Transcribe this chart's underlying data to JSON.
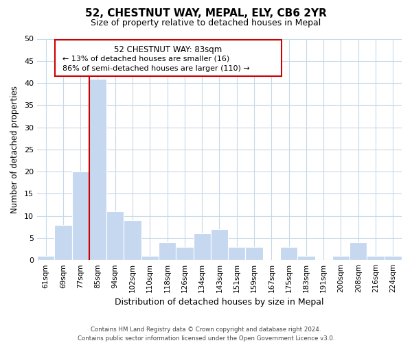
{
  "title": "52, CHESTNUT WAY, MEPAL, ELY, CB6 2YR",
  "subtitle": "Size of property relative to detached houses in Mepal",
  "xlabel": "Distribution of detached houses by size in Mepal",
  "ylabel": "Number of detached properties",
  "bin_labels": [
    "61sqm",
    "69sqm",
    "77sqm",
    "85sqm",
    "94sqm",
    "102sqm",
    "110sqm",
    "118sqm",
    "126sqm",
    "134sqm",
    "143sqm",
    "151sqm",
    "159sqm",
    "167sqm",
    "175sqm",
    "183sqm",
    "191sqm",
    "200sqm",
    "208sqm",
    "216sqm",
    "224sqm"
  ],
  "bin_values": [
    1,
    8,
    20,
    41,
    11,
    9,
    1,
    4,
    3,
    6,
    7,
    3,
    3,
    0,
    3,
    1,
    0,
    1,
    4,
    1,
    1
  ],
  "bar_color": "#c5d8f0",
  "vline_color": "#cc0000",
  "vline_x_index": 3,
  "ylim": [
    0,
    50
  ],
  "yticks": [
    0,
    5,
    10,
    15,
    20,
    25,
    30,
    35,
    40,
    45,
    50
  ],
  "annotation_title": "52 CHESTNUT WAY: 83sqm",
  "annotation_line1": "← 13% of detached houses are smaller (16)",
  "annotation_line2": "86% of semi-detached houses are larger (110) →",
  "footer_line1": "Contains HM Land Registry data © Crown copyright and database right 2024.",
  "footer_line2": "Contains public sector information licensed under the Open Government Licence v3.0.",
  "background_color": "#ffffff",
  "grid_color": "#c8d8e8",
  "title_fontsize": 11,
  "subtitle_fontsize": 9
}
